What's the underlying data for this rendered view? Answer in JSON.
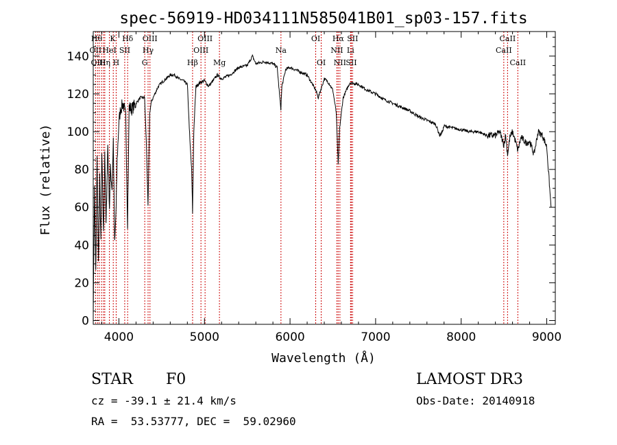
{
  "chart_data": {
    "type": "line",
    "title": "spec-56919-HD034111N585041B01_sp03-157.fits",
    "xlabel": "Wavelength (Å)",
    "ylabel": "Flux (relative)",
    "xlim": [
      3700,
      9100
    ],
    "ylim": [
      -2,
      153
    ],
    "xticks": [
      4000,
      5000,
      6000,
      7000,
      8000,
      9000
    ],
    "yticks": [
      0,
      20,
      40,
      60,
      80,
      100,
      120,
      140
    ],
    "series": [
      {
        "name": "spectrum",
        "x": [
          3700,
          3715,
          3730,
          3745,
          3760,
          3775,
          3790,
          3800,
          3820,
          3835,
          3850,
          3870,
          3890,
          3900,
          3920,
          3935,
          3950,
          3968,
          3980,
          4000,
          4020,
          4050,
          4080,
          4101,
          4120,
          4150,
          4200,
          4250,
          4300,
          4320,
          4340,
          4360,
          4380,
          4420,
          4460,
          4500,
          4550,
          4600,
          4650,
          4700,
          4750,
          4800,
          4830,
          4850,
          4861,
          4875,
          4900,
          4950,
          5000,
          5050,
          5100,
          5150,
          5200,
          5300,
          5400,
          5500,
          5560,
          5600,
          5700,
          5800,
          5850,
          5880,
          5893,
          5905,
          5950,
          6000,
          6100,
          6200,
          6250,
          6300,
          6330,
          6400,
          6450,
          6500,
          6540,
          6563,
          6580,
          6620,
          6700,
          6800,
          6900,
          7000,
          7100,
          7200,
          7300,
          7400,
          7500,
          7600,
          7700,
          7750,
          7780,
          7800,
          7900,
          8000,
          8100,
          8200,
          8300,
          8400,
          8450,
          8498,
          8520,
          8542,
          8570,
          8600,
          8640,
          8662,
          8700,
          8760,
          8800,
          8850,
          8900,
          8950,
          9000,
          9050
        ],
        "values": [
          5,
          70,
          25,
          85,
          30,
          75,
          40,
          88,
          45,
          90,
          50,
          93,
          60,
          80,
          70,
          96,
          40,
          60,
          85,
          105,
          112,
          115,
          108,
          52,
          113,
          112,
          115,
          118,
          118,
          95,
          60,
          110,
          116,
          120,
          124,
          126,
          128,
          130,
          130,
          128,
          127,
          125,
          95,
          80,
          57,
          100,
          124,
          126,
          127,
          124,
          127,
          130,
          128,
          130,
          134,
          135,
          140,
          136,
          137,
          136,
          134,
          118,
          112,
          124,
          133,
          134,
          132,
          130,
          126,
          122,
          118,
          128,
          126,
          122,
          110,
          82,
          102,
          118,
          126,
          125,
          122,
          120,
          117,
          115,
          113,
          111,
          108,
          106,
          104,
          98,
          100,
          103,
          102,
          101,
          100,
          100,
          98,
          98,
          100,
          93,
          98,
          88,
          97,
          100,
          94,
          90,
          97,
          94,
          95,
          88,
          100,
          98,
          92,
          60
        ]
      }
    ],
    "lines": [
      {
        "w": 3727,
        "names": [
          "OII"
        ]
      },
      {
        "w": 3750,
        "names": [
          "Hθ"
        ]
      },
      {
        "w": 3770,
        "names": [
          "OIII"
        ]
      },
      {
        "w": 3797,
        "names": [
          "Hη"
        ]
      },
      {
        "w": 3820,
        "names": [
          "He"
        ]
      },
      {
        "w": 3835,
        "names": [
          "Hη"
        ]
      },
      {
        "w": 3889,
        "names": [
          "HeI"
        ]
      },
      {
        "w": 3934,
        "names": [
          "K"
        ]
      },
      {
        "w": 3968,
        "names": [
          "H"
        ]
      },
      {
        "w": 4068,
        "names": [
          "SII"
        ]
      },
      {
        "w": 4102,
        "names": [
          "Hδ"
        ]
      },
      {
        "w": 4302,
        "names": [
          "G"
        ]
      },
      {
        "w": 4341,
        "names": [
          "Hγ"
        ]
      },
      {
        "w": 4363,
        "names": [
          "OIII"
        ]
      },
      {
        "w": 4861,
        "names": [
          "Hβ"
        ]
      },
      {
        "w": 4959,
        "names": [
          "OIII"
        ]
      },
      {
        "w": 5007,
        "names": [
          "OIII"
        ]
      },
      {
        "w": 5175,
        "names": [
          "Mg"
        ]
      },
      {
        "w": 5894,
        "names": [
          "Na"
        ]
      },
      {
        "w": 6300,
        "names": [
          "OI"
        ]
      },
      {
        "w": 6364,
        "names": [
          "OI"
        ]
      },
      {
        "w": 6548,
        "names": [
          "NII"
        ]
      },
      {
        "w": 6563,
        "names": [
          "Hα"
        ]
      },
      {
        "w": 6583,
        "names": [
          "NII"
        ]
      },
      {
        "w": 6707,
        "names": [
          "Li"
        ]
      },
      {
        "w": 6716,
        "names": [
          "SII"
        ]
      },
      {
        "w": 6731,
        "names": [
          "SII"
        ]
      },
      {
        "w": 8498,
        "names": [
          "CaII"
        ]
      },
      {
        "w": 8542,
        "names": [
          "CaII"
        ]
      },
      {
        "w": 8662,
        "names": [
          "CaII"
        ]
      }
    ],
    "line_labels": [
      {
        "text": "Hθ",
        "w": 3740,
        "row": 1
      },
      {
        "text": "K",
        "w": 3928,
        "row": 1
      },
      {
        "text": "Hδ",
        "w": 4102,
        "row": 1
      },
      {
        "text": "OIII",
        "w": 4363,
        "row": 1
      },
      {
        "text": "OIII",
        "w": 5007,
        "row": 1
      },
      {
        "text": "OI",
        "w": 6300,
        "row": 1
      },
      {
        "text": "Hα",
        "w": 6563,
        "row": 1
      },
      {
        "text": "SII",
        "w": 6731,
        "row": 1
      },
      {
        "text": "CaII",
        "w": 8542,
        "row": 1
      },
      {
        "text": "OII",
        "w": 3727,
        "row": 2
      },
      {
        "text": "HeI",
        "w": 3889,
        "row": 2
      },
      {
        "text": "SII",
        "w": 4068,
        "row": 2
      },
      {
        "text": "Hγ",
        "w": 4341,
        "row": 2
      },
      {
        "text": "OIII",
        "w": 4959,
        "row": 2
      },
      {
        "text": "Na",
        "w": 5894,
        "row": 2
      },
      {
        "text": "NII",
        "w": 6548,
        "row": 2
      },
      {
        "text": "Li",
        "w": 6707,
        "row": 2
      },
      {
        "text": "CaII",
        "w": 8498,
        "row": 2
      },
      {
        "text": "OIII",
        "w": 3760,
        "row": 3
      },
      {
        "text": "Hη",
        "w": 3835,
        "row": 3
      },
      {
        "text": "H",
        "w": 3968,
        "row": 3
      },
      {
        "text": "G",
        "w": 4302,
        "row": 3
      },
      {
        "text": "Hβ",
        "w": 4861,
        "row": 3
      },
      {
        "text": "Mg",
        "w": 5175,
        "row": 3
      },
      {
        "text": "OI",
        "w": 6364,
        "row": 3
      },
      {
        "text": "NII",
        "w": 6583,
        "row": 3
      },
      {
        "text": "SII",
        "w": 6716,
        "row": 3
      },
      {
        "text": "CaII",
        "w": 8662,
        "row": 3
      }
    ],
    "colors": {
      "spectrum": "#000000",
      "lines": "#cc0000"
    }
  },
  "info": {
    "object_class": "STAR",
    "subclass": "F0",
    "survey": "LAMOST DR3",
    "redshift": "cz = -39.1 ± 21.4 km/s",
    "obs_date": "Obs-Date: 20140918",
    "coords": "RA =  53.53777, DEC =  59.02960"
  }
}
